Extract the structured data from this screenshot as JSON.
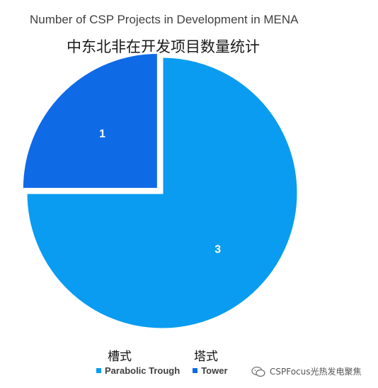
{
  "chart_data": {
    "type": "pie",
    "title": "Number of CSP Projects in Development in MENA",
    "subtitle": "中东北非在开发项目数量统计",
    "slices": [
      {
        "name": "Tower",
        "name_cn": "塔式",
        "value": 1,
        "label": "1",
        "color": "#0f6ae6",
        "exploded": true
      },
      {
        "name": "Parabolic Trough",
        "name_cn": "槽式",
        "value": 3,
        "label": "3",
        "color": "#0a9cf0",
        "exploded": false
      }
    ],
    "legend_position": "bottom"
  },
  "watermark": {
    "text": "CSPFocus光热发电聚焦",
    "icon": "wechat-icon"
  }
}
